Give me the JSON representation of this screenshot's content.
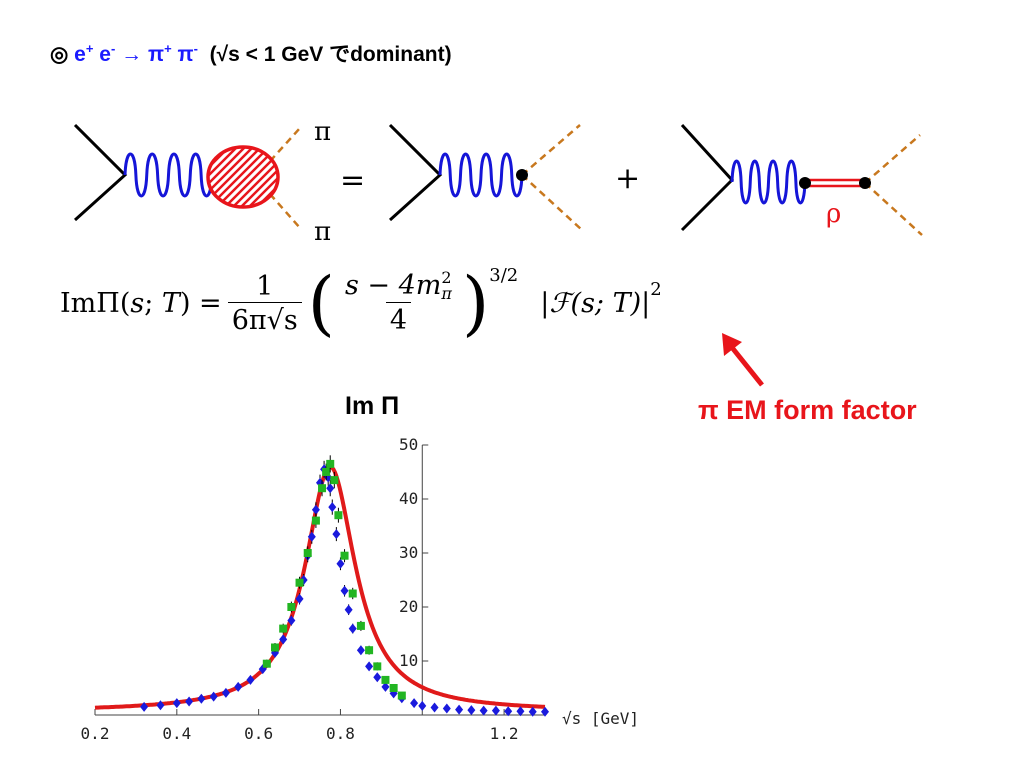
{
  "title": {
    "symbol": "◎",
    "process_parts": [
      "e",
      "+",
      " e",
      "-",
      " → π",
      "+",
      " π",
      "-"
    ],
    "condition_prefix": "(√s < 1 GeV ",
    "condition_jp": "で",
    "condition_suffix": "dominant)"
  },
  "diagram": {
    "pi_top_label": "π",
    "pi_bottom_label": "π",
    "equals": "=",
    "plus": "+",
    "rho_label": "ρ"
  },
  "formula": {
    "lhs": "ImΠ(s; T) =",
    "frac1_num": "1",
    "frac1_den": "6π√s",
    "frac2_num": "s − 4m",
    "frac2_num_sup": "2",
    "frac2_num_sub": "π",
    "frac2_den": "4",
    "exp1": "3/2",
    "form_factor": "|ℱ(s; T)|",
    "exp2": "2"
  },
  "colors": {
    "photon": "#1515d8",
    "pion": "#c8781e",
    "blob": "#e8151b",
    "rho": "#e8151b",
    "fit_curve": "#e01a1a",
    "data_blue": "#1a1add",
    "data_green": "#22b522"
  },
  "annotation": {
    "label": "π EM form factor"
  },
  "chart_data": {
    "type": "scatter",
    "title": "Im Π",
    "xlabel": "√s [GeV]",
    "ylabel": "",
    "xlim": [
      0.2,
      1.3
    ],
    "ylim": [
      0,
      50
    ],
    "x_ticks": [
      "0.2",
      "0.4",
      "0.6",
      "0.8",
      "1.2"
    ],
    "x_tick_values": [
      0.2,
      0.4,
      0.6,
      0.8,
      1.2
    ],
    "y_ticks": [
      "10",
      "20",
      "30",
      "40",
      "50"
    ],
    "y_tick_values": [
      10,
      20,
      30,
      40,
      50
    ],
    "y_axis_at_x": 1.0,
    "fit": {
      "name": "",
      "peak_x": 0.775,
      "peak_y": 46,
      "half_width": 0.075,
      "baseline": 0.6
    },
    "series": [
      {
        "name": "",
        "marker": "diamond",
        "x": [
          0.32,
          0.36,
          0.4,
          0.43,
          0.46,
          0.49,
          0.52,
          0.55,
          0.58,
          0.61,
          0.64,
          0.66,
          0.68,
          0.7,
          0.71,
          0.72,
          0.73,
          0.74,
          0.75,
          0.76,
          0.77,
          0.775,
          0.78,
          0.79,
          0.8,
          0.81,
          0.82,
          0.83,
          0.85,
          0.87,
          0.89,
          0.91,
          0.93,
          0.95,
          0.98,
          1.0,
          1.03,
          1.06,
          1.09,
          1.12,
          1.15,
          1.18,
          1.21,
          1.24,
          1.27,
          1.3
        ],
        "y": [
          1.5,
          1.8,
          2.2,
          2.5,
          3.0,
          3.4,
          4.1,
          5.2,
          6.5,
          8.5,
          11.5,
          14.0,
          17.5,
          21.5,
          25.0,
          29.5,
          33.0,
          38.0,
          43.0,
          45.5,
          44.0,
          42.0,
          38.5,
          33.5,
          28.0,
          23.0,
          19.5,
          16.0,
          12.0,
          9.0,
          7.0,
          5.2,
          4.0,
          3.1,
          2.2,
          1.7,
          1.4,
          1.2,
          1.0,
          0.9,
          0.8,
          0.8,
          0.7,
          0.7,
          0.6,
          0.6
        ]
      },
      {
        "name": "",
        "marker": "square",
        "x": [
          0.62,
          0.64,
          0.66,
          0.68,
          0.7,
          0.72,
          0.74,
          0.755,
          0.765,
          0.775,
          0.785,
          0.795,
          0.81,
          0.83,
          0.85,
          0.87,
          0.89,
          0.91,
          0.93,
          0.95
        ],
        "y": [
          9.5,
          12.5,
          16.0,
          20.0,
          24.5,
          30.0,
          36.0,
          42.0,
          45.0,
          46.5,
          43.5,
          37.0,
          29.5,
          22.5,
          16.5,
          12.0,
          9.0,
          6.5,
          5.0,
          3.6
        ]
      }
    ]
  }
}
